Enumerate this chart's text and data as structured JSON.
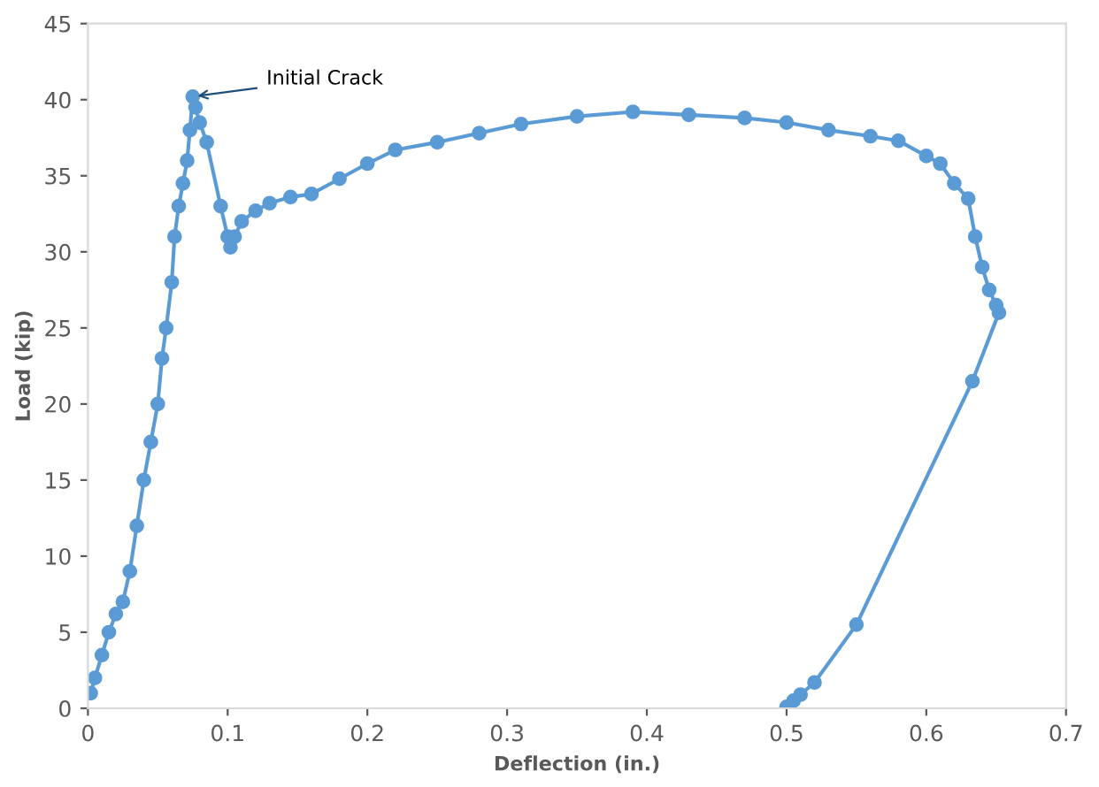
{
  "chart_data": {
    "type": "line",
    "xlabel": "Deflection (in.)",
    "ylabel": "Load (kip)",
    "marker": "circle",
    "line_style": "solid",
    "grid": false,
    "legend": false,
    "xlim": [
      0,
      0.7
    ],
    "xticks": [
      0,
      0.1,
      0.2,
      0.3,
      0.4,
      0.5,
      0.6,
      0.7
    ],
    "ylim": [
      0,
      45
    ],
    "yticks": [
      0,
      5,
      10,
      15,
      20,
      25,
      30,
      35,
      40,
      45
    ],
    "annotations": [
      {
        "text": "Initial Crack",
        "x": 0.075,
        "y": 40.2
      }
    ],
    "series": [
      {
        "color": "#5b9bd5",
        "x": [
          0.002,
          0.005,
          0.01,
          0.015,
          0.02,
          0.025,
          0.03,
          0.035,
          0.04,
          0.045,
          0.05,
          0.053,
          0.056,
          0.06,
          0.062,
          0.065,
          0.068,
          0.071,
          0.073,
          0.075,
          0.077,
          0.08,
          0.085,
          0.095,
          0.1,
          0.102,
          0.105,
          0.11,
          0.12,
          0.13,
          0.145,
          0.16,
          0.18,
          0.2,
          0.22,
          0.25,
          0.28,
          0.31,
          0.35,
          0.39,
          0.43,
          0.47,
          0.5,
          0.53,
          0.56,
          0.58,
          0.6,
          0.61,
          0.62,
          0.63,
          0.635,
          0.64,
          0.645,
          0.65,
          0.652,
          0.633,
          0.55,
          0.52,
          0.51,
          0.505,
          0.5
        ],
        "values": [
          1,
          2,
          3.5,
          5,
          6.2,
          7,
          9,
          12,
          15,
          17.5,
          20,
          23,
          25,
          28,
          31,
          33,
          34.5,
          36,
          38,
          40.2,
          39.5,
          38.5,
          37.2,
          33,
          31,
          30.3,
          31,
          32,
          32.7,
          33.2,
          33.6,
          33.8,
          34.8,
          35.8,
          36.7,
          37.2,
          37.8,
          38.4,
          38.9,
          39.2,
          39,
          38.8,
          38.5,
          38,
          37.6,
          37.3,
          36.3,
          35.8,
          34.5,
          33.5,
          31,
          29,
          27.5,
          26.5,
          26,
          21.5,
          5.5,
          1.7,
          0.9,
          0.5,
          0.1
        ]
      }
    ]
  }
}
